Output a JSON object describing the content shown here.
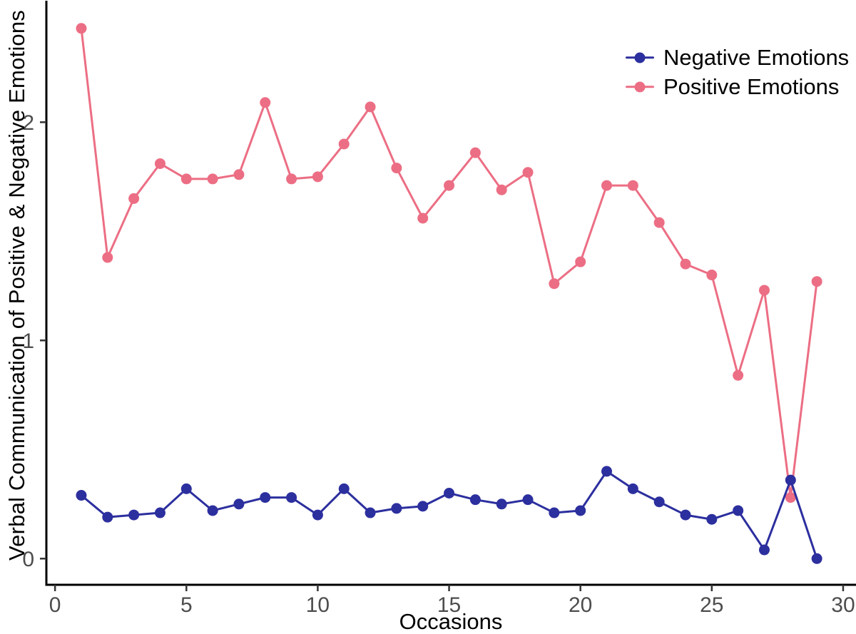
{
  "chart_data": {
    "type": "line",
    "title": "",
    "xlabel": "Occasions",
    "ylabel": "Verbal Communication of Positive & Negative Emotions",
    "x": [
      1,
      2,
      3,
      4,
      5,
      6,
      7,
      8,
      9,
      10,
      11,
      12,
      13,
      14,
      15,
      16,
      17,
      18,
      19,
      20,
      21,
      22,
      23,
      24,
      25,
      26,
      27,
      28,
      29
    ],
    "series": [
      {
        "name": "Negative Emotions",
        "color": "#2c2f9e",
        "values": [
          0.29,
          0.19,
          0.2,
          0.21,
          0.32,
          0.22,
          0.25,
          0.28,
          0.28,
          0.2,
          0.32,
          0.21,
          0.23,
          0.24,
          0.3,
          0.27,
          0.25,
          0.27,
          0.21,
          0.22,
          0.4,
          0.32,
          0.26,
          0.2,
          0.18,
          0.22,
          0.04,
          0.36,
          0.0
        ]
      },
      {
        "name": "Positive Emotions",
        "color": "#ec6e84",
        "values": [
          2.43,
          1.38,
          1.65,
          1.81,
          1.74,
          1.74,
          1.76,
          2.09,
          1.74,
          1.75,
          1.9,
          2.07,
          1.79,
          1.56,
          1.71,
          1.86,
          1.69,
          1.77,
          1.26,
          1.36,
          1.71,
          1.71,
          1.54,
          1.35,
          1.3,
          0.84,
          1.23,
          0.28,
          1.27
        ]
      }
    ],
    "xticks": [
      0,
      5,
      10,
      15,
      20,
      25,
      30
    ],
    "yticks": [
      0,
      1,
      2
    ],
    "xlim": [
      -0.33,
      30.49
    ],
    "ylim": [
      -0.12,
      2.56
    ],
    "grid": false,
    "legend_position": "top-right",
    "axis_color": "#000000",
    "tick_color": "#333333",
    "tick_label_color": "#4d4d4d"
  }
}
